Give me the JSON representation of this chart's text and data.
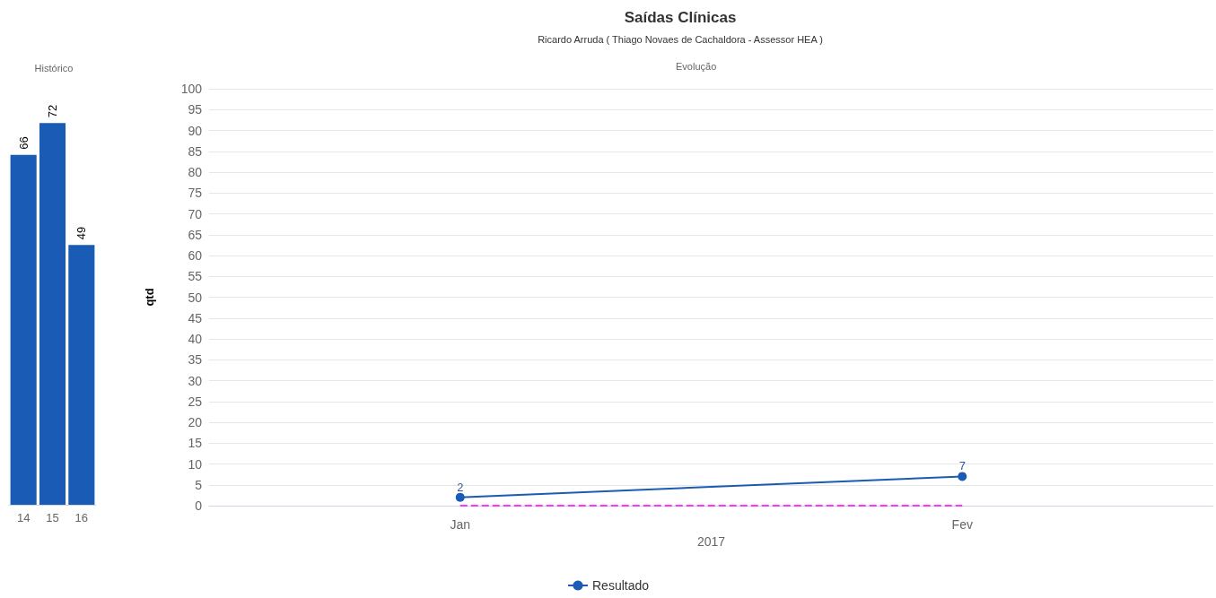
{
  "chart_data": [
    {
      "type": "bar",
      "title": "Histórico",
      "categories": [
        "14",
        "15",
        "16"
      ],
      "values": [
        66,
        72,
        49
      ],
      "color": "#1a5bb5",
      "data_labels": true
    },
    {
      "type": "line",
      "title": "Saídas Clínicas",
      "subtitle": "Ricardo Arruda ( Thiago Novaes de Cachaldora - Assessor HEA )",
      "annotations": [
        "Evolução"
      ],
      "xlabel": "2017",
      "ylabel": "qtd",
      "categories": [
        "Jan",
        "Fev"
      ],
      "series": [
        {
          "name": "Resultado",
          "color": "#1a5bb5",
          "values": [
            2,
            7
          ],
          "marker": "circle",
          "value_labels": [
            "2",
            "7"
          ]
        },
        {
          "color": "#ff33ff",
          "values": [
            0,
            0
          ],
          "marker": "none",
          "line_style": "dashed"
        }
      ],
      "ylim": [
        0,
        100
      ],
      "yticks": [
        0,
        5,
        10,
        15,
        20,
        25,
        30,
        35,
        40,
        45,
        50,
        55,
        60,
        65,
        70,
        75,
        80,
        85,
        90,
        95,
        100
      ],
      "grid": "y",
      "legend": "bottom"
    }
  ]
}
